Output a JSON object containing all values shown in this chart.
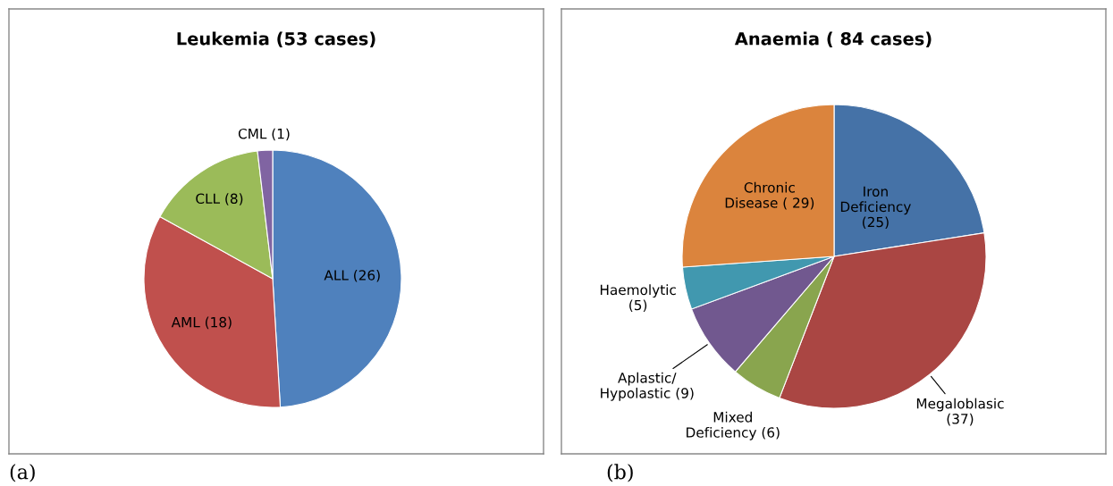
{
  "chart_data": [
    {
      "type": "pie",
      "title": "Leukemia (53 cases)",
      "categories": [
        "ALL (26)",
        "AML (18)",
        "CLL (8)",
        "CML (1)"
      ],
      "values": [
        26,
        18,
        8,
        1
      ],
      "colors": [
        "#4f81bd",
        "#c0504d",
        "#9bbb59",
        "#8064a2"
      ],
      "annotations": [
        "(a)"
      ]
    },
    {
      "type": "pie",
      "title": "Anaemia ( 84 cases)",
      "categories": [
        "Iron\nDeficiency\n(25)",
        "Megaloblasic\n(37)",
        "Mixed\nDeficiency (6)",
        "Aplastic/\nHypolastic (9)",
        "Haemolytic\n(5)",
        "Chronic\nDisease ( 29)"
      ],
      "values": [
        25,
        37,
        6,
        9,
        5,
        29
      ],
      "colors": [
        "#4572a7",
        "#aa4643",
        "#89a54e",
        "#71588f",
        "#4198af",
        "#db843d"
      ],
      "annotations": [
        "(b)"
      ]
    }
  ]
}
